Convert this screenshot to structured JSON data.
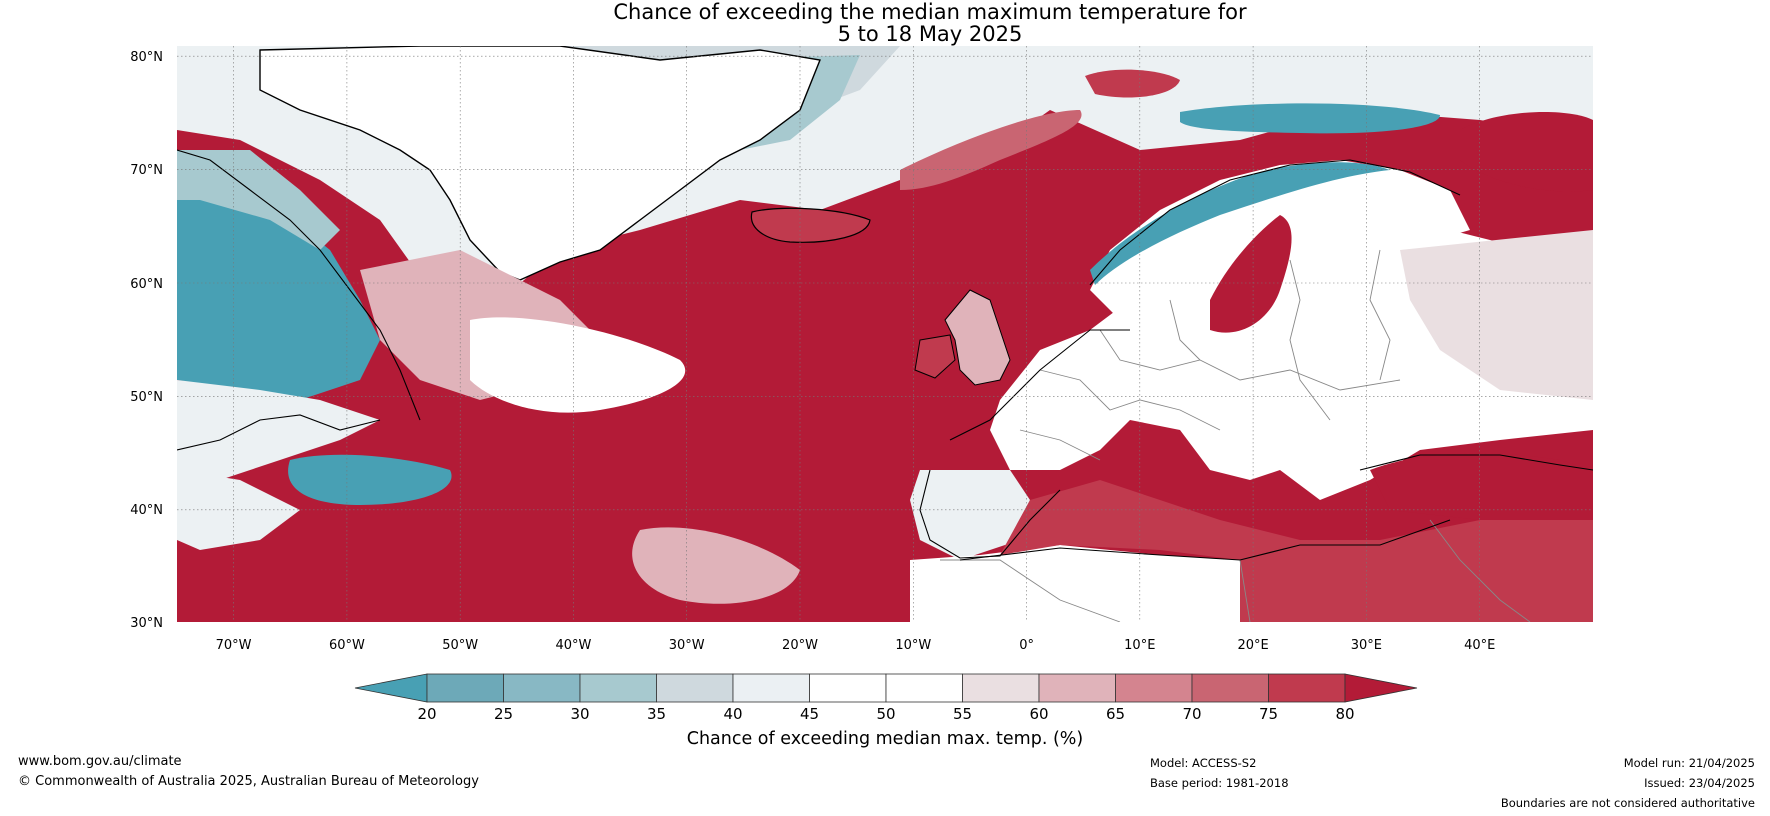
{
  "title": {
    "line1": "Chance of exceeding the median maximum temperature for",
    "line2": "5 to 18 May 2025"
  },
  "map": {
    "lat_labels": [
      "80°N",
      "70°N",
      "60°N",
      "50°N",
      "40°N",
      "30°N"
    ],
    "lat_values": [
      80,
      70,
      60,
      50,
      40,
      30
    ],
    "lon_labels": [
      "70°W",
      "60°W",
      "50°W",
      "40°W",
      "30°W",
      "20°W",
      "10°W",
      "0°",
      "10°E",
      "20°E",
      "30°E",
      "40°E"
    ],
    "lon_values": [
      -70,
      -60,
      -50,
      -40,
      -30,
      -20,
      -10,
      0,
      10,
      20,
      30,
      40
    ],
    "extent": {
      "lon_min": -75,
      "lon_max": 50,
      "lat_min": 30,
      "lat_max": 81
    },
    "colors": {
      "ocean_warm": "#b31b37",
      "cool_strong": "#48a0b4",
      "cool_mid": "#a7c9cf",
      "neutral": "#ffffff",
      "warm_light": "#e0b3ba",
      "warm_mid": "#cb6b79"
    }
  },
  "colorbar": {
    "ticks": [
      "20",
      "25",
      "30",
      "35",
      "40",
      "45",
      "50",
      "55",
      "60",
      "65",
      "70",
      "75",
      "80"
    ],
    "colors": [
      "#48a0b4",
      "#6da9b8",
      "#88b8c4",
      "#a7c9cf",
      "#cfd9de",
      "#ebf0f3",
      "#ffffff",
      "#ffffff",
      "#eadfe1",
      "#e0b3ba",
      "#d4848f",
      "#c96572",
      "#c03a4e",
      "#b31b37"
    ],
    "label": "Chance of exceeding median max. temp. (%)"
  },
  "footer": {
    "url": "www.bom.gov.au/climate",
    "copyright": "© Commonwealth of Australia 2025, Australian Bureau of Meteorology",
    "model": "Model: ACCESS-S2",
    "base_period": "Base period: 1981-2018",
    "model_run": "Model run: 21/04/2025",
    "issued": "Issued: 23/04/2025",
    "disclaimer": "Boundaries are not considered authoritative"
  }
}
